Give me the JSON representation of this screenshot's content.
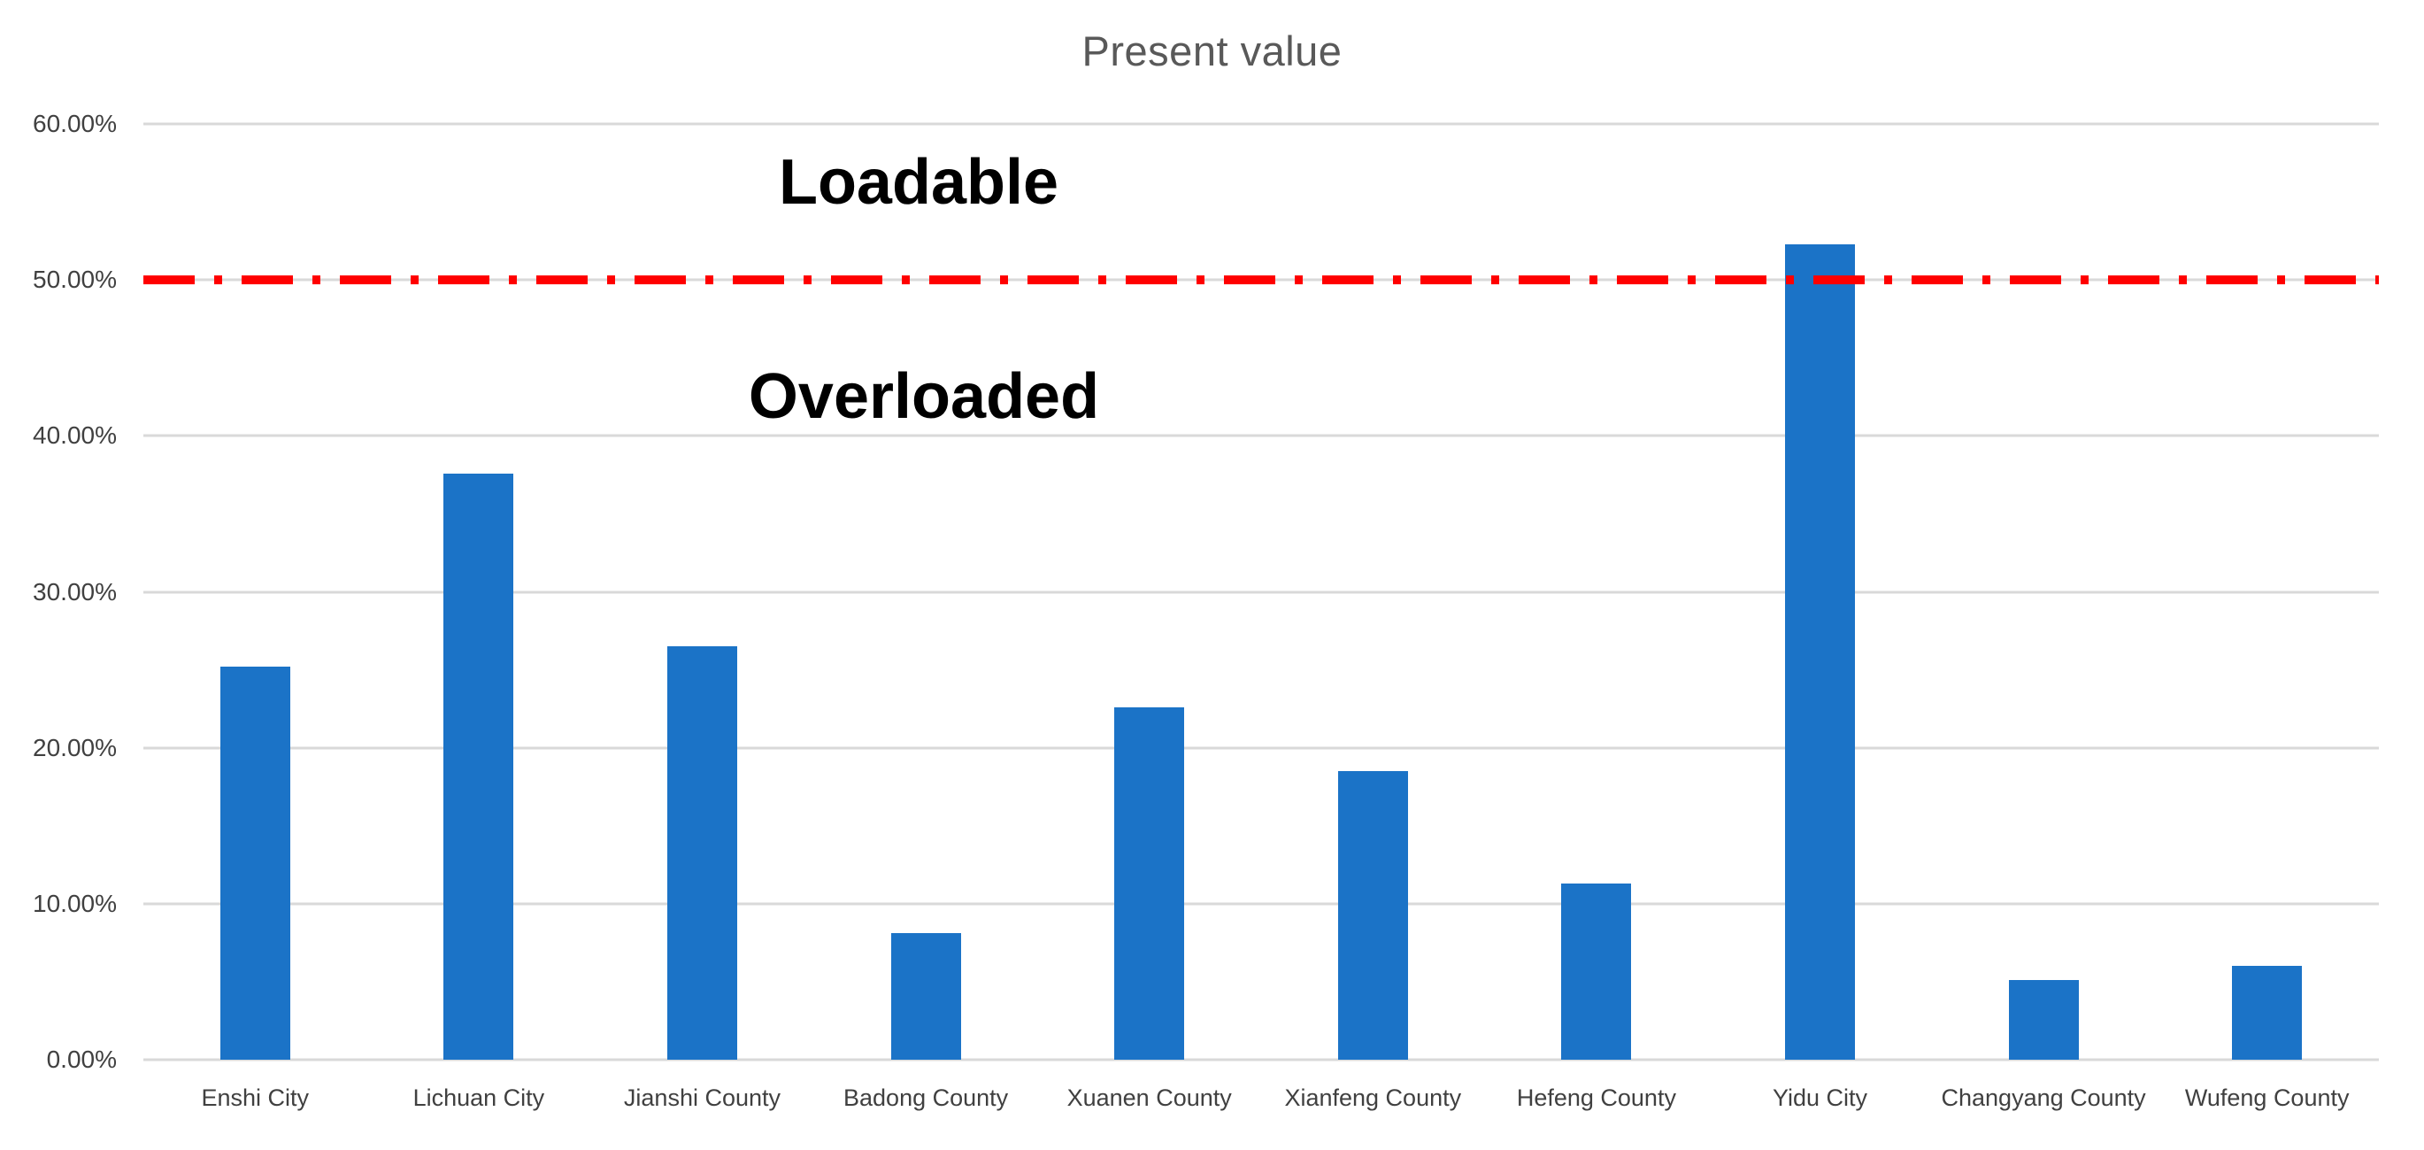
{
  "chart_data": {
    "type": "bar",
    "title": "Present value",
    "categories": [
      "Enshi City",
      "Lichuan City",
      "Jianshi County",
      "Badong County",
      "Xuanen County",
      "Xianfeng County",
      "Hefeng County",
      "Yidu City",
      "Changyang County",
      "Wufeng County"
    ],
    "values": [
      25.2,
      37.6,
      26.5,
      8.1,
      22.6,
      18.5,
      11.3,
      52.3,
      5.1,
      6.0
    ],
    "value_unit": "percent",
    "xlabel": "",
    "ylabel": "",
    "ylim": [
      0,
      60
    ],
    "ytick_step": 10,
    "ytick_labels": [
      "0.00%",
      "10.00%",
      "20.00%",
      "30.00%",
      "40.00%",
      "50.00%",
      "60.00%"
    ],
    "grid": "horizontal",
    "legend_position": "none",
    "threshold_line": {
      "value": 50,
      "style": "dash-dot",
      "color": "#ff0000",
      "label_above": "Loadable",
      "label_below": "Overloaded"
    },
    "colors": {
      "bar": "#1b73c7",
      "threshold_line": "#ff0000",
      "title_text": "#595959",
      "axis_text": "#404040",
      "gridline": "#d9d9d9",
      "annotation_text": "#000000",
      "background": "#ffffff"
    }
  }
}
